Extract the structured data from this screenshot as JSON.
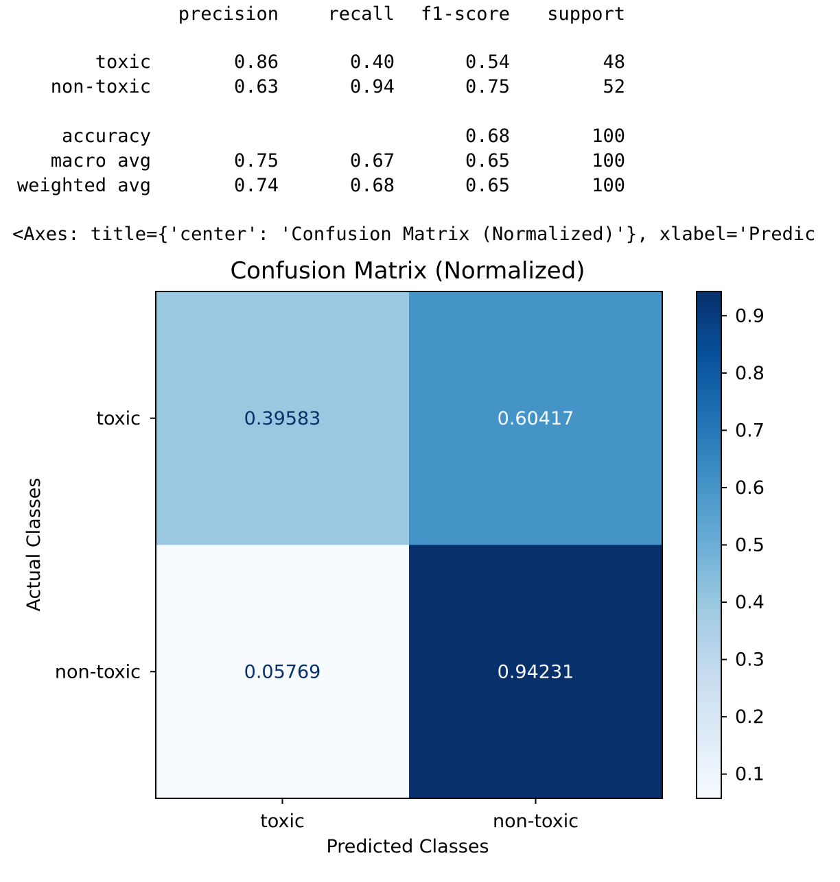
{
  "report": {
    "headers": [
      "precision",
      "recall",
      "f1-score",
      "support"
    ],
    "rows": [
      {
        "label": "toxic",
        "precision": "0.86",
        "recall": "0.40",
        "f1": "0.54",
        "support": "48"
      },
      {
        "label": "non-toxic",
        "precision": "0.63",
        "recall": "0.94",
        "f1": "0.75",
        "support": "52"
      },
      {
        "label": "accuracy",
        "precision": "",
        "recall": "",
        "f1": "0.68",
        "support": "100"
      },
      {
        "label": "macro avg",
        "precision": "0.75",
        "recall": "0.67",
        "f1": "0.65",
        "support": "100"
      },
      {
        "label": "weighted avg",
        "precision": "0.74",
        "recall": "0.68",
        "f1": "0.65",
        "support": "100"
      }
    ]
  },
  "axes_repr": "<Axes: title={'center': 'Confusion Matrix (Normalized)'}, xlabel='Predic",
  "chart_data": {
    "type": "heatmap",
    "title": "Confusion Matrix (Normalized)",
    "xlabel": "Predicted Classes",
    "ylabel": "Actual Classes",
    "x_categories": [
      "toxic",
      "non-toxic"
    ],
    "y_categories": [
      "toxic",
      "non-toxic"
    ],
    "values": [
      [
        0.39583,
        0.60417
      ],
      [
        0.05769,
        0.94231
      ]
    ],
    "value_labels": [
      [
        "0.39583",
        "0.60417"
      ],
      [
        "0.05769",
        "0.94231"
      ]
    ],
    "colormap": "Blues",
    "colorbar": {
      "range": [
        0.05769,
        0.94231
      ],
      "ticks": [
        0.1,
        0.2,
        0.3,
        0.4,
        0.5,
        0.6,
        0.7,
        0.8,
        0.9
      ],
      "tick_labels": [
        "0.1",
        "0.2",
        "0.3",
        "0.4",
        "0.5",
        "0.6",
        "0.7",
        "0.8",
        "0.9"
      ]
    }
  }
}
